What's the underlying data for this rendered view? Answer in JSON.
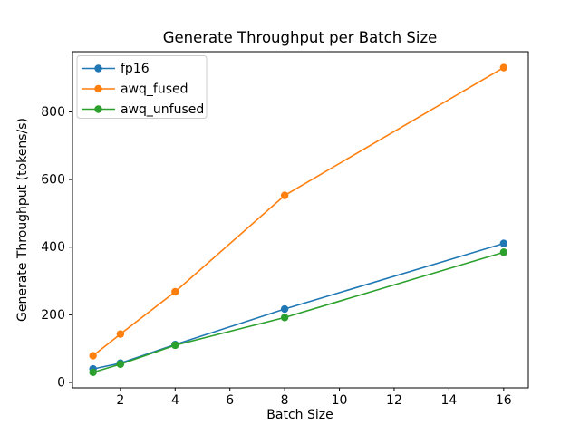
{
  "figure": {
    "title": "Generate Throughput per Batch Size"
  },
  "chart_data": {
    "type": "line",
    "title": "Generate Throughput per Batch Size",
    "xlabel": "Batch Size",
    "ylabel": "Generate Throughput (tokens/s)",
    "x": [
      1,
      2,
      4,
      8,
      16
    ],
    "series": [
      {
        "name": "fp16",
        "color": "#1f77b4",
        "values": [
          40,
          57,
          112,
          217,
          411
        ]
      },
      {
        "name": "awq_fused",
        "color": "#ff7f0e",
        "values": [
          79,
          143,
          268,
          553,
          931
        ]
      },
      {
        "name": "awq_unfused",
        "color": "#2ca02c",
        "values": [
          30,
          54,
          110,
          192,
          385
        ]
      }
    ],
    "xticks": [
      2,
      4,
      6,
      8,
      10,
      12,
      14,
      16
    ],
    "yticks": [
      0,
      200,
      400,
      600,
      800
    ],
    "xlim": [
      0.25,
      16.9
    ],
    "ylim": [
      -16,
      978
    ],
    "grid": false,
    "marker": "o",
    "legend_position": "upper left",
    "colors": {
      "background": "#ffffff",
      "spine": "#000000",
      "legend_border": "#cccccc",
      "text": "#000000"
    }
  }
}
